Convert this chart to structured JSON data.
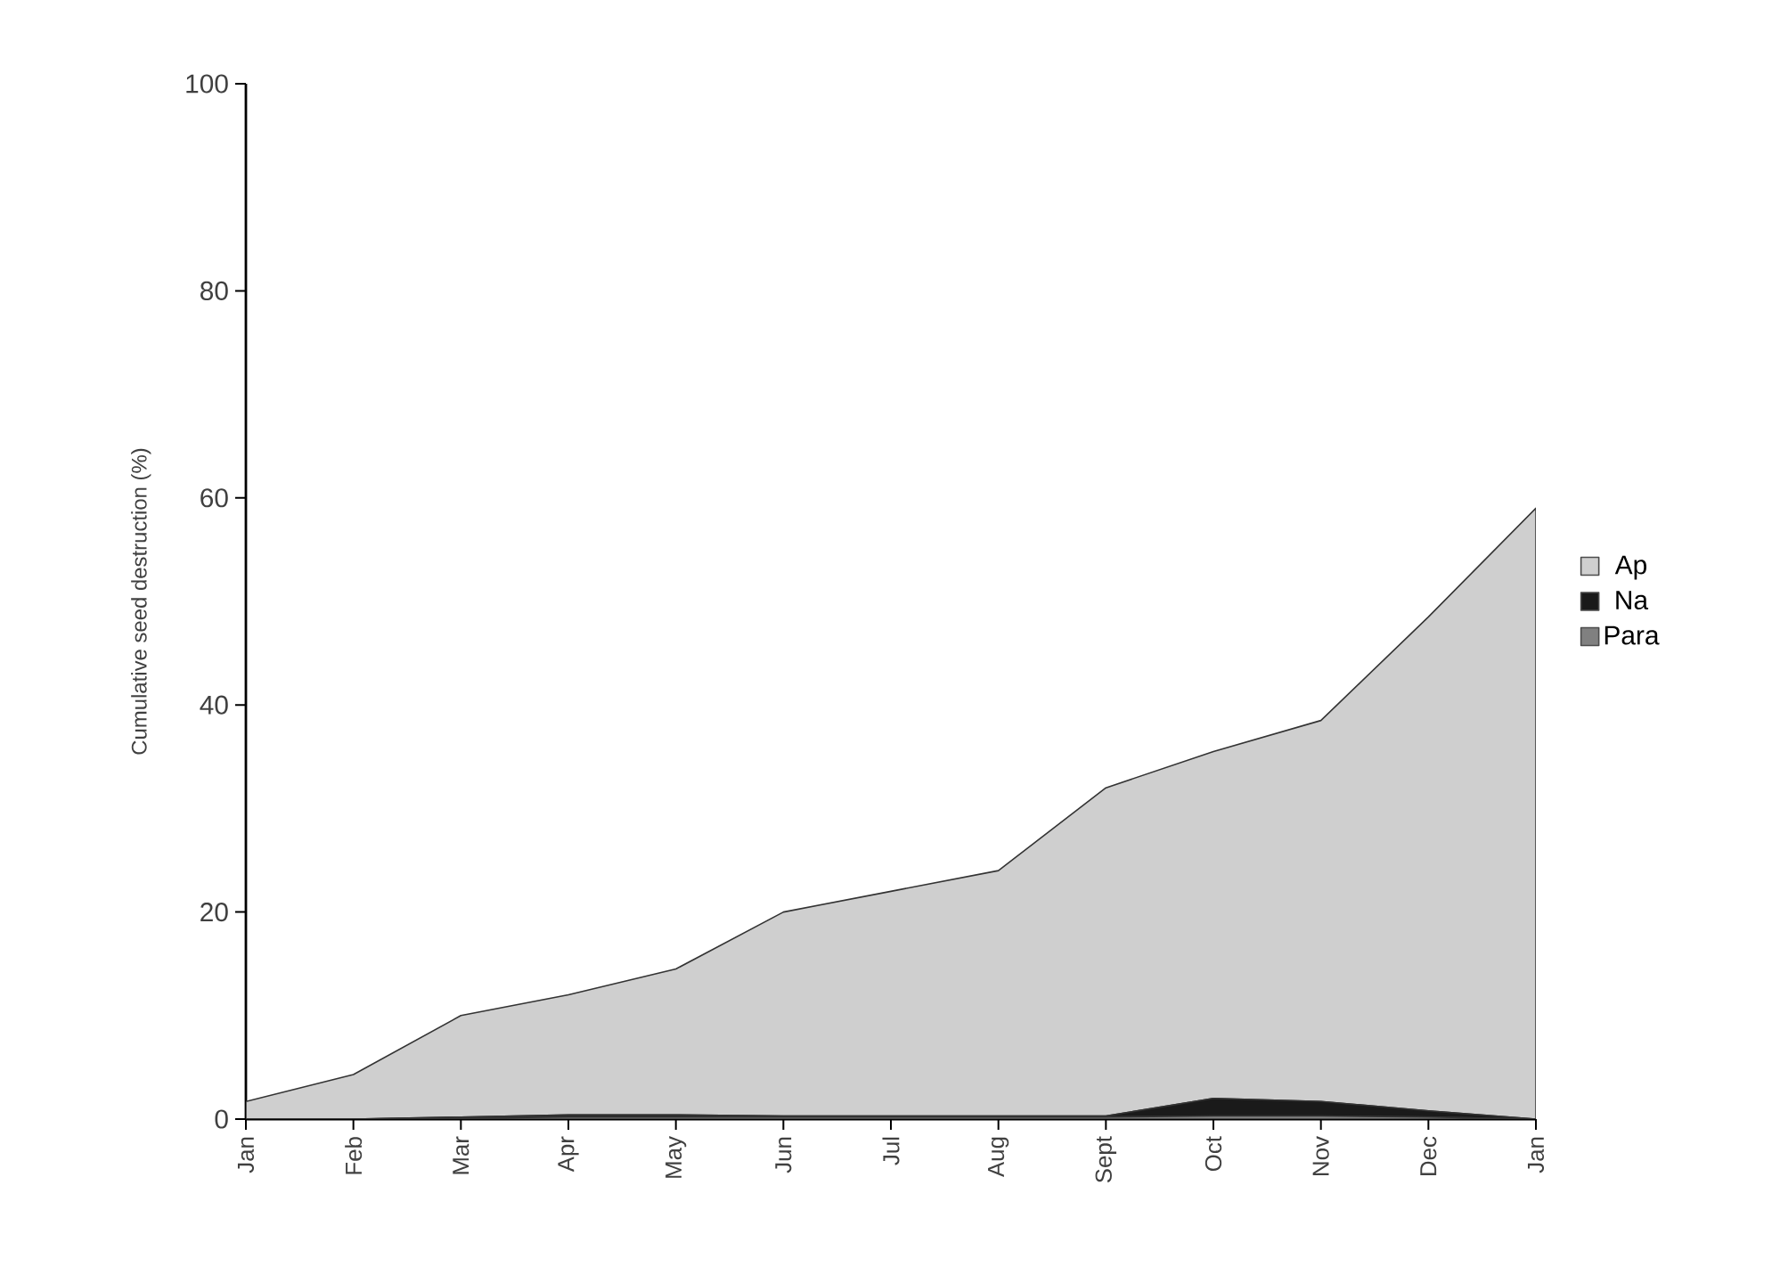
{
  "chart_data": {
    "type": "area",
    "stacked": true,
    "ylabel": "Cumulative seed destruction (%)",
    "categories": [
      "Jan",
      "Feb",
      "Mar",
      "Apr",
      "May",
      "Jun",
      "Jul",
      "Aug",
      "Sept",
      "Oct",
      "Nov",
      "Dec",
      "Jan"
    ],
    "series": [
      {
        "name": "Para",
        "color": "#808080",
        "values": [
          0,
          0,
          0.1,
          0.2,
          0.2,
          0.2,
          0.2,
          0.2,
          0.2,
          0.3,
          0.3,
          0.2,
          0
        ]
      },
      {
        "name": "Na",
        "color": "#1a1a1a",
        "values": [
          0,
          0,
          0.1,
          0.2,
          0.2,
          0.1,
          0.1,
          0.1,
          0.1,
          1.7,
          1.4,
          0.6,
          0
        ]
      },
      {
        "name": "Ap",
        "color": "#cfcfcf",
        "values": [
          1.7,
          4.3,
          9.8,
          11.6,
          14.1,
          19.7,
          21.7,
          23.7,
          31.7,
          33.5,
          36.8,
          47.7,
          59
        ]
      }
    ],
    "ylim": [
      0,
      100
    ],
    "yticks": [
      0,
      20,
      40,
      60,
      80,
      100
    ],
    "grid": false,
    "legend": "right"
  }
}
